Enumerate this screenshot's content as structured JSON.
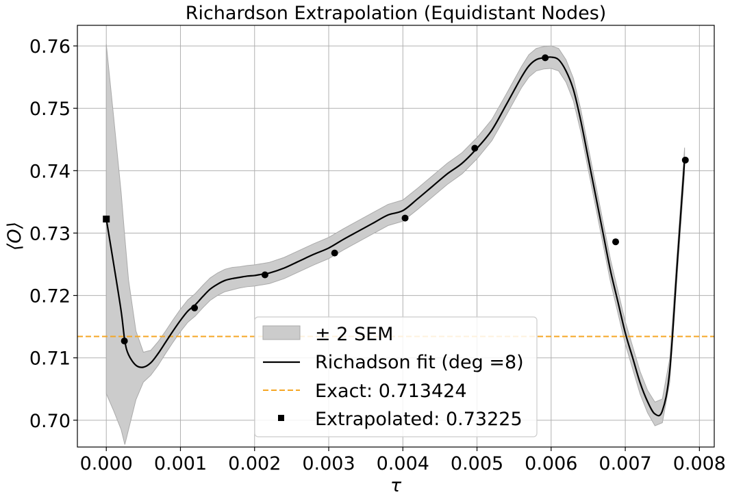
{
  "chart_data": {
    "type": "line",
    "title": "Richardson Extrapolation (Equidistant Nodes)",
    "xlabel": "τ",
    "ylabel": "⟨O⟩",
    "xlim": [
      -0.00039,
      0.0082
    ],
    "ylim": [
      0.6957,
      0.7633
    ],
    "x_ticks": [
      0.0,
      0.001,
      0.002,
      0.003,
      0.004,
      0.005,
      0.006,
      0.007,
      0.008
    ],
    "x_tick_labels": [
      "0.000",
      "0.001",
      "0.002",
      "0.003",
      "0.004",
      "0.005",
      "0.006",
      "0.007",
      "0.008"
    ],
    "y_ticks": [
      0.7,
      0.71,
      0.72,
      0.73,
      0.74,
      0.75,
      0.76
    ],
    "y_tick_labels": [
      "0.70",
      "0.71",
      "0.72",
      "0.73",
      "0.74",
      "0.75",
      "0.76"
    ],
    "grid": true,
    "legend_position": "lower center",
    "data_points": {
      "name": "Data",
      "x": [
        0.000244,
        0.00119,
        0.00214,
        0.00308,
        0.00403,
        0.00497,
        0.00592,
        0.00687,
        0.00781
      ],
      "y": [
        0.7127,
        0.718,
        0.7233,
        0.7268,
        0.7324,
        0.7436,
        0.7581,
        0.7286,
        0.7417
      ]
    },
    "fit_curve": {
      "name": "Richadson fit (deg =8)",
      "degree": 8,
      "x": [
        0.0,
        0.0001,
        0.0002,
        0.00025,
        0.0003,
        0.0004,
        0.0005,
        0.0006,
        0.0007,
        0.0008,
        0.0009,
        0.001,
        0.0011,
        0.0012,
        0.0013,
        0.0014,
        0.0015,
        0.0016,
        0.0017,
        0.0018,
        0.0019,
        0.002,
        0.0021,
        0.0022,
        0.0024,
        0.0026,
        0.0028,
        0.003,
        0.0032,
        0.0034,
        0.0036,
        0.0038,
        0.004,
        0.0042,
        0.0044,
        0.0046,
        0.0048,
        0.005,
        0.0052,
        0.0054,
        0.0056,
        0.0057,
        0.0058,
        0.0059,
        0.006,
        0.0061,
        0.0062,
        0.0063,
        0.0064,
        0.0065,
        0.0066,
        0.0067,
        0.0068,
        0.0069,
        0.007,
        0.0071,
        0.0072,
        0.0073,
        0.0074,
        0.0075,
        0.0076,
        0.0077,
        0.0078
      ],
      "y": [
        0.73225,
        0.725,
        0.7175,
        0.7127,
        0.7105,
        0.7088,
        0.7085,
        0.7092,
        0.7107,
        0.7125,
        0.7143,
        0.716,
        0.7175,
        0.7185,
        0.7198,
        0.721,
        0.7218,
        0.7224,
        0.7227,
        0.7229,
        0.7231,
        0.7232,
        0.7234,
        0.7236,
        0.7244,
        0.7255,
        0.7266,
        0.7276,
        0.729,
        0.7303,
        0.7316,
        0.7329,
        0.7336,
        0.7355,
        0.7375,
        0.7395,
        0.7412,
        0.7436,
        0.7465,
        0.7507,
        0.755,
        0.7568,
        0.7578,
        0.7581,
        0.7582,
        0.7578,
        0.756,
        0.753,
        0.748,
        0.742,
        0.736,
        0.73,
        0.724,
        0.719,
        0.714,
        0.71,
        0.706,
        0.703,
        0.701,
        0.7015,
        0.708,
        0.725,
        0.7417
      ]
    },
    "band": {
      "name": "± 2 SEM",
      "half_width": [
        0.028,
        0.0235,
        0.019,
        0.0166,
        0.012,
        0.0055,
        0.0024,
        0.002,
        0.0019,
        0.0018,
        0.0018,
        0.0018,
        0.0018,
        0.0018,
        0.0018,
        0.0018,
        0.0018,
        0.0018,
        0.0018,
        0.0017,
        0.0017,
        0.0017,
        0.0017,
        0.0017,
        0.0017,
        0.0017,
        0.0017,
        0.0017,
        0.0017,
        0.0017,
        0.0017,
        0.0017,
        0.0017,
        0.0017,
        0.0017,
        0.0017,
        0.0017,
        0.0017,
        0.0017,
        0.0017,
        0.0017,
        0.0018,
        0.0018,
        0.0018,
        0.0018,
        0.0018,
        0.0018,
        0.0018,
        0.0018,
        0.0018,
        0.0018,
        0.0018,
        0.0018,
        0.0018,
        0.0018,
        0.0018,
        0.0018,
        0.0018,
        0.0019,
        0.0019,
        0.0019,
        0.0019,
        0.002
      ]
    },
    "exact": {
      "name": "Exact: 0.713424",
      "value": 0.713424
    },
    "extrapolated": {
      "name": "Extrapolated: 0.73225",
      "x": 0.0,
      "value": 0.73225
    },
    "legend_labels": [
      "± 2 SEM",
      "Richadson fit (deg =8)",
      "Exact: 0.713424",
      "Extrapolated: 0.73225"
    ],
    "colors": {
      "band": "#cccccc",
      "band_edge": "#aaaaaa",
      "fit": "#000000",
      "exact": "#f5a623",
      "points": "#000000",
      "grid": "#b0b0b0"
    }
  }
}
